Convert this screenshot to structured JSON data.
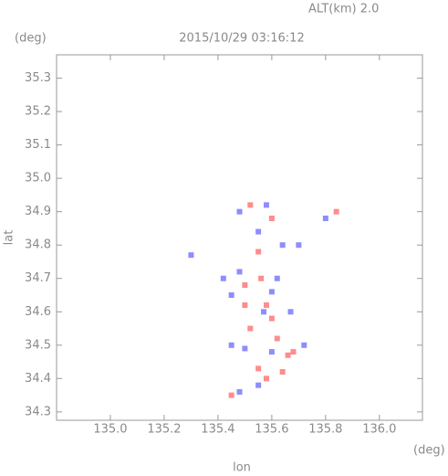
{
  "chart_data": {
    "type": "scatter",
    "title": "2015/10/29 03:16:12",
    "annotation": "ALT(km) 2.0",
    "y_unit": "(deg)",
    "x_unit": "(deg)",
    "xlabel": "lon",
    "ylabel": "lat",
    "xlim": [
      134.8,
      136.16
    ],
    "ylim": [
      34.275,
      35.37
    ],
    "xticks": [
      {
        "value": 135,
        "label": "135.0"
      },
      135.2,
      135.4,
      135.6,
      135.8,
      {
        "value": 136,
        "label": "136.0"
      }
    ],
    "yticks": [
      34.3,
      34.4,
      34.5,
      34.6,
      34.7,
      34.8,
      34.9,
      {
        "value": 35,
        "label": "35.0"
      },
      35.1,
      35.2,
      35.3
    ],
    "series": [
      {
        "color": "#ff6f6f",
        "x": [
          135.52,
          135.6,
          135.55,
          135.5,
          135.58,
          135.6,
          135.52,
          135.62,
          135.66,
          135.55,
          135.58,
          135.64,
          135.45,
          135.5,
          135.56,
          135.84,
          135.68
        ],
        "values": [
          34.92,
          34.88,
          34.78,
          34.68,
          34.62,
          34.58,
          34.55,
          34.52,
          34.47,
          34.43,
          34.4,
          34.42,
          34.35,
          34.62,
          34.7,
          34.9,
          34.48
        ]
      },
      {
        "color": "#7070ff",
        "x": [
          135.48,
          135.58,
          135.55,
          135.64,
          135.7,
          135.48,
          135.62,
          135.6,
          135.45,
          135.57,
          135.45,
          135.5,
          135.6,
          135.55,
          135.48,
          135.67,
          135.8,
          135.3,
          135.42,
          135.72
        ],
        "values": [
          34.9,
          34.92,
          34.84,
          34.8,
          34.8,
          34.72,
          34.7,
          34.66,
          34.65,
          34.6,
          34.5,
          34.49,
          34.48,
          34.38,
          34.36,
          34.6,
          34.88,
          34.77,
          34.7,
          34.5
        ]
      }
    ]
  }
}
